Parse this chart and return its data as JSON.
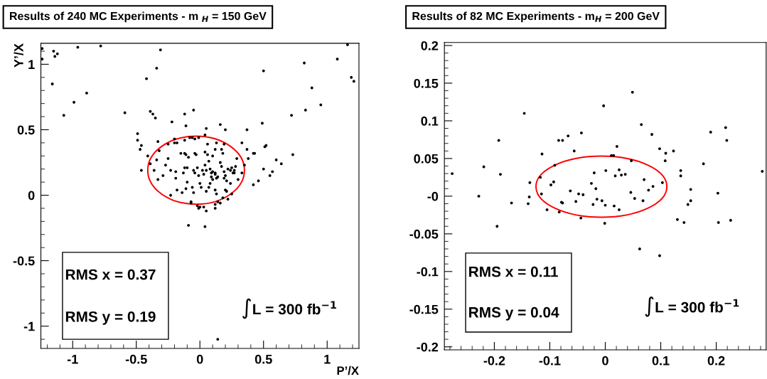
{
  "chart_data": [
    {
      "type": "scatter",
      "title": "Results of 240 MC Experiments - m $_{H}$ = 150 GeV",
      "xlabel": "P’/X",
      "ylabel": "Y’/X",
      "xlim": [
        -1.25,
        1.25
      ],
      "ylim": [
        -1.17,
        1.16
      ],
      "xticks": [
        -1,
        -0.5,
        0,
        0.5,
        1
      ],
      "yticks": [
        -1,
        -0.5,
        0,
        0.5,
        1
      ],
      "marker": "circle",
      "grid": false,
      "legend": false,
      "annotations": [
        "RMS x = 0.37",
        "RMS y = 0.19",
        "∫L = 300 fb$^{−1}$"
      ],
      "series": [
        {
          "type": "scatter",
          "color": "#000000",
          "x": [
            -1.24,
            -1.24,
            -1.15,
            -1.14,
            -1.12,
            -1.16,
            -0.96,
            -0.78,
            -0.89,
            -0.99,
            -1.07,
            -0.31,
            -0.42,
            -0.34,
            -0.59,
            -0.39,
            -0.37,
            -0.35,
            -0.12,
            -0.05,
            -0.22,
            -0.11,
            0.05,
            0.16,
            0.2,
            0.37,
            0.49,
            0.5,
            0.82,
            0.88,
            1.08,
            1.16,
            1.19,
            1.21,
            0.95,
            0.83,
            0.72,
            0.73,
            0.64,
            0.6,
            0.57,
            0.55,
            0.46,
            0.42,
            0.5,
            0.51,
            0.52,
            0.42,
            0.43,
            0.37,
            0.38,
            0.33,
            0.35,
            0.3,
            -0.49,
            -0.49,
            -0.46,
            -0.47,
            -0.46,
            -0.41,
            -0.39,
            -0.36,
            -0.33,
            -0.34,
            -0.33,
            -0.32,
            -0.29,
            -0.27,
            -0.25,
            -0.25,
            -0.23,
            -0.23,
            -0.2,
            -0.2,
            -0.18,
            -0.19,
            -0.19,
            -0.18,
            -0.15,
            -0.12,
            -0.11,
            -0.12,
            -0.13,
            -0.12,
            -0.1,
            -0.09,
            -0.14,
            -0.11,
            -0.1,
            -0.08,
            -0.06,
            -0.04,
            -0.01,
            -0.04,
            -0.03,
            -0.05,
            -0.04,
            -0.06,
            -0.05,
            -0.07,
            -0.07,
            -0.02,
            -0.01,
            0.0,
            0.01,
            0.02,
            0.03,
            0.04,
            0.04,
            0.04,
            0.05,
            0.06,
            0.06,
            0.07,
            0.08,
            0.09,
            0.09,
            0.1,
            0.1,
            0.12,
            0.12,
            0.13,
            0.14,
            0.08,
            0.07,
            0.05,
            0.12,
            0.13,
            0.1,
            0.12,
            0.13,
            0.17,
            0.18,
            0.16,
            0.17,
            0.19,
            0.19,
            0.2,
            0.19,
            0.22,
            0.24,
            0.25,
            0.26,
            0.27,
            0.27,
            0.21,
            0.24,
            0.2,
            0.21,
            0.22,
            0.25,
            0.28,
            0.29,
            0.33,
            0.03,
            -0.02,
            0.0,
            0.12,
            0.14,
            0.16,
            0.18,
            -0.01,
            0.05,
            0.12,
            -0.09,
            0.04,
            0.14
          ],
          "values": [
            1.12,
            1.04,
            1.1,
            1.06,
            1.08,
            0.85,
            1.13,
            1.14,
            0.78,
            0.71,
            0.61,
            1.11,
            0.89,
            0.97,
            0.63,
            0.64,
            0.62,
            0.59,
            0.62,
            0.65,
            0.56,
            0.53,
            0.51,
            0.54,
            0.5,
            0.5,
            0.55,
            0.95,
            1.01,
            0.82,
            1.04,
            1.15,
            0.9,
            0.87,
            0.69,
            0.65,
            0.61,
            0.31,
            0.24,
            0.27,
            0.18,
            0.15,
            0.11,
            0.08,
            0.2,
            0.37,
            0.38,
            0.32,
            0.32,
            0.35,
            0.28,
            0.4,
            0.23,
            0.12,
            0.47,
            0.42,
            0.38,
            0.35,
            0.19,
            0.3,
            0.24,
            0.19,
            0.12,
            0.27,
            0.41,
            0.34,
            0.15,
            0.23,
            0.39,
            0.28,
            0.19,
            0.0,
            0.43,
            0.4,
            0.4,
            0.18,
            0.13,
            0.04,
            0.32,
            0.32,
            0.31,
            0.42,
            0.17,
            0.21,
            0.21,
            0.29,
            0.02,
            0.05,
            0.1,
            0.44,
            0.44,
            0.43,
            0.44,
            0.32,
            0.31,
            0.19,
            0.17,
            0.06,
            0.02,
            -0.05,
            -0.06,
            0.21,
            0.15,
            0.09,
            0.06,
            0.19,
            0.16,
            0.46,
            0.33,
            0.23,
            0.19,
            0.39,
            0.31,
            0.26,
            0.2,
            0.17,
            0.14,
            0.12,
            0.18,
            0.16,
            0.17,
            0.13,
            0.14,
            0.09,
            0.06,
            0.03,
            0.04,
            0.01,
            0.3,
            0.35,
            0.4,
            0.35,
            0.32,
            0.25,
            0.22,
            0.39,
            0.18,
            0.15,
            0.13,
            0.2,
            0.19,
            0.21,
            0.17,
            0.19,
            0.17,
            0.11,
            0.09,
            0.04,
            0.03,
            -0.03,
            0.01,
            0.22,
            0.28,
            0.17,
            -0.09,
            -0.08,
            -0.09,
            -0.07,
            -0.05,
            -0.06,
            -0.02,
            -0.1,
            -0.12,
            -0.1,
            -0.23,
            -0.24,
            -1.1
          ]
        }
      ]
    },
    {
      "type": "scatter",
      "title": "Results of 82 MC Experiments - m$_{H}$ = 200 GeV",
      "xlim": [
        -0.29,
        0.29
      ],
      "ylim": [
        -0.204,
        0.204
      ],
      "xticks": [
        -0.2,
        -0.1,
        0,
        0.1,
        0.2
      ],
      "yticks": [
        -0.2,
        -0.15,
        -0.1,
        -0.05,
        {
          "value": 0,
          "label": "-0"
        },
        0.05,
        0.1,
        0.15,
        0.2
      ],
      "marker": "circle",
      "grid": false,
      "legend": false,
      "annotations": [
        "RMS x = 0.11",
        "RMS y = 0.04",
        "∫L = 300 fb$^{−1}$"
      ],
      "series": [
        {
          "type": "scatter",
          "color": "#000000",
          "x": [
            -0.276,
            -0.219,
            -0.228,
            -0.192,
            -0.189,
            -0.169,
            -0.146,
            -0.139,
            -0.137,
            -0.136,
            -0.114,
            -0.115,
            -0.117,
            -0.105,
            -0.098,
            -0.093,
            -0.091,
            -0.084,
            -0.077,
            -0.083,
            -0.079,
            -0.077,
            -0.067,
            -0.063,
            -0.056,
            -0.053,
            -0.048,
            -0.04,
            -0.043,
            -0.025,
            -0.022,
            -0.02,
            -0.017,
            -0.015,
            -0.006,
            -0.003,
            0.0,
            0.001,
            0.011,
            0.015,
            0.016,
            0.018,
            0.021,
            0.025,
            0.025,
            0.029,
            0.036,
            0.046,
            0.047,
            0.049,
            0.053,
            0.065,
            0.068,
            0.07,
            0.078,
            0.086,
            0.084,
            0.098,
            0.103,
            0.108,
            0.109,
            0.123,
            0.136,
            0.136,
            0.149,
            0.154,
            0.154,
            0.177,
            0.19,
            0.203,
            0.217,
            0.219,
            0.283,
            -0.044,
            -0.001,
            0.13,
            0.142,
            0.204,
            0.226,
            -0.195,
            0.062,
            0.098
          ],
          "values": [
            0.03,
            0.039,
            0.0,
            0.074,
            0.029,
            -0.009,
            0.11,
            -0.01,
            -0.001,
            0.018,
            0.056,
            0.003,
            0.025,
            -0.018,
            0.015,
            0.019,
            0.041,
            0.074,
            0.074,
            -0.021,
            -0.008,
            -0.009,
            0.08,
            0.007,
            0.06,
            -0.007,
            0.003,
            0.002,
            0.084,
            0.017,
            -0.011,
            0.031,
            0.01,
            -0.004,
            -0.006,
            0.12,
            -0.012,
            0.034,
            0.054,
            0.054,
            -0.013,
            0.027,
            0.066,
            0.035,
            -0.018,
            0.028,
            0.029,
            0.005,
            0.047,
            0.138,
            -0.003,
            0.095,
            -0.006,
            0.022,
            0.008,
            0.013,
            0.082,
            0.063,
            0.018,
            0.047,
            0.057,
            0.06,
            0.034,
            0.027,
            -0.011,
            -0.006,
            0.009,
            0.043,
            0.085,
            0.004,
            0.091,
            0.074,
            0.033,
            -0.029,
            -0.036,
            -0.031,
            -0.035,
            -0.035,
            -0.032,
            -0.04,
            -0.07,
            -0.079
          ]
        }
      ]
    }
  ]
}
